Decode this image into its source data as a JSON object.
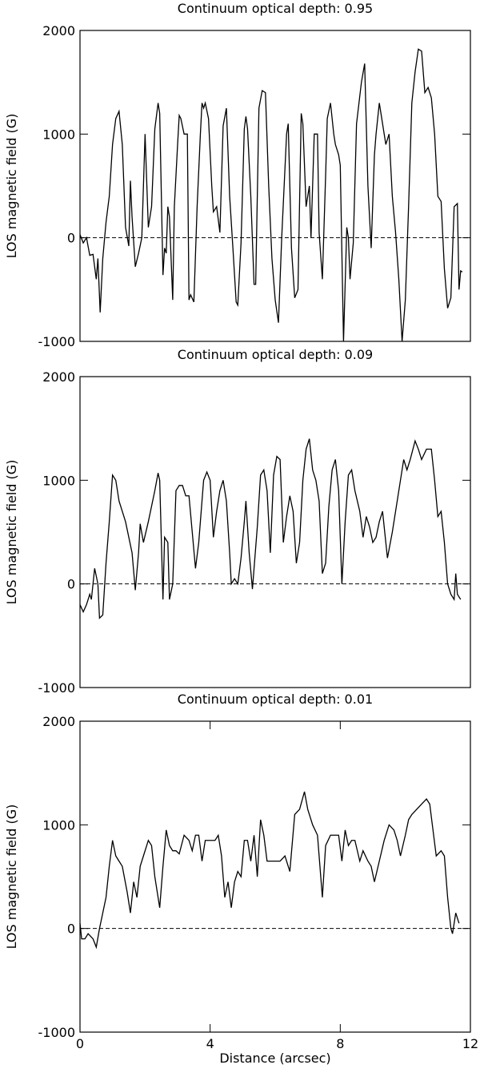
{
  "chart_data": [
    {
      "type": "line",
      "title": "Continuum optical depth: 0.95",
      "y_label": "LOS magnetic field (G)",
      "xlim": [
        0,
        12
      ],
      "ylim": [
        -1000,
        2000
      ],
      "yticks": [
        -1000,
        0,
        1000,
        2000
      ],
      "hline": 0,
      "x": [
        0,
        0.1,
        0.2,
        0.3,
        0.4,
        0.5,
        0.55,
        0.62,
        0.7,
        0.8,
        0.9,
        1.0,
        1.1,
        1.2,
        1.3,
        1.4,
        1.5,
        1.55,
        1.6,
        1.7,
        1.8,
        1.9,
        2.0,
        2.1,
        2.2,
        2.3,
        2.4,
        2.45,
        2.55,
        2.6,
        2.65,
        2.7,
        2.75,
        2.85,
        2.9,
        3.0,
        3.05,
        3.1,
        3.2,
        3.3,
        3.35,
        3.4,
        3.5,
        3.6,
        3.7,
        3.75,
        3.8,
        3.85,
        3.95,
        4.05,
        4.1,
        4.2,
        4.3,
        4.4,
        4.5,
        4.6,
        4.7,
        4.8,
        4.85,
        4.95,
        5.05,
        5.1,
        5.15,
        5.25,
        5.35,
        5.4,
        5.5,
        5.6,
        5.7,
        5.8,
        5.9,
        6.0,
        6.1,
        6.2,
        6.35,
        6.4,
        6.5,
        6.6,
        6.7,
        6.8,
        6.85,
        6.95,
        7.05,
        7.1,
        7.2,
        7.3,
        7.35,
        7.45,
        7.55,
        7.6,
        7.7,
        7.8,
        7.85,
        7.95,
        8.0,
        8.1,
        8.2,
        8.25,
        8.3,
        8.4,
        8.5,
        8.65,
        8.75,
        8.85,
        8.95,
        9.05,
        9.1,
        9.2,
        9.3,
        9.4,
        9.5,
        9.6,
        9.7,
        9.8,
        9.9,
        10.0,
        10.1,
        10.2,
        10.3,
        10.4,
        10.5,
        10.6,
        10.7,
        10.8,
        10.9,
        11.0,
        11.1,
        11.2,
        11.3,
        11.4,
        11.5,
        11.6,
        11.65,
        11.7,
        11.75
      ],
      "series": [
        {
          "color": "#000000",
          "values": [
            30,
            -50,
            0,
            -170,
            -160,
            -400,
            -200,
            -720,
            -200,
            150,
            400,
            900,
            1150,
            1220,
            900,
            100,
            -80,
            550,
            200,
            -280,
            -150,
            0,
            1000,
            100,
            300,
            1050,
            1300,
            1200,
            -360,
            -100,
            -150,
            300,
            200,
            -600,
            300,
            900,
            1180,
            1150,
            1000,
            1000,
            -600,
            -550,
            -620,
            300,
            1000,
            1300,
            1250,
            1300,
            1150,
            500,
            250,
            300,
            50,
            1080,
            1250,
            400,
            -100,
            -620,
            -650,
            -50,
            1050,
            1170,
            1050,
            400,
            -450,
            -450,
            1250,
            1420,
            1400,
            500,
            -200,
            -600,
            -820,
            0,
            1000,
            1100,
            -100,
            -580,
            -500,
            1200,
            1100,
            300,
            500,
            0,
            1000,
            1000,
            50,
            -400,
            600,
            1150,
            1300,
            1000,
            900,
            800,
            700,
            -1000,
            100,
            0,
            -400,
            -50,
            1100,
            1500,
            1680,
            500,
            -100,
            800,
            1000,
            1300,
            1100,
            900,
            1000,
            400,
            50,
            -400,
            -1000,
            -600,
            300,
            1300,
            1600,
            1820,
            1800,
            1400,
            1450,
            1350,
            1000,
            400,
            350,
            -300,
            -680,
            -580,
            300,
            330,
            -500,
            -320,
            -330
          ]
        }
      ]
    },
    {
      "type": "line",
      "title": "Continuum optical depth: 0.09",
      "y_label": "LOS magnetic field (G)",
      "xlim": [
        0,
        12
      ],
      "ylim": [
        -1000,
        2000
      ],
      "yticks": [
        -1000,
        0,
        1000,
        2000
      ],
      "hline": 0,
      "x": [
        0,
        0.1,
        0.2,
        0.3,
        0.35,
        0.45,
        0.55,
        0.6,
        0.7,
        0.8,
        0.9,
        1.0,
        1.1,
        1.2,
        1.4,
        1.6,
        1.7,
        1.8,
        1.85,
        1.95,
        2.1,
        2.3,
        2.4,
        2.45,
        2.55,
        2.6,
        2.7,
        2.75,
        2.85,
        2.95,
        3.05,
        3.15,
        3.25,
        3.35,
        3.45,
        3.55,
        3.65,
        3.8,
        3.9,
        4.0,
        4.1,
        4.2,
        4.3,
        4.4,
        4.5,
        4.6,
        4.65,
        4.75,
        4.85,
        4.95,
        5.05,
        5.1,
        5.2,
        5.3,
        5.45,
        5.55,
        5.65,
        5.75,
        5.85,
        5.95,
        6.05,
        6.15,
        6.25,
        6.35,
        6.45,
        6.55,
        6.65,
        6.75,
        6.85,
        6.95,
        7.05,
        7.15,
        7.25,
        7.35,
        7.45,
        7.55,
        7.65,
        7.75,
        7.85,
        7.95,
        8.05,
        8.15,
        8.25,
        8.35,
        8.45,
        8.6,
        8.7,
        8.8,
        8.9,
        9.0,
        9.1,
        9.2,
        9.3,
        9.45,
        9.6,
        9.7,
        9.85,
        9.95,
        10.05,
        10.15,
        10.3,
        10.4,
        10.5,
        10.65,
        10.8,
        10.9,
        11.0,
        11.1,
        11.2,
        11.3,
        11.4,
        11.5,
        11.55,
        11.6,
        11.7
      ],
      "series": [
        {
          "color": "#000000",
          "values": [
            -200,
            -270,
            -200,
            -100,
            -150,
            150,
            0,
            -330,
            -300,
            200,
            600,
            1050,
            1000,
            800,
            600,
            300,
            -60,
            300,
            580,
            400,
            600,
            900,
            1070,
            1000,
            -150,
            450,
            400,
            -150,
            0,
            900,
            950,
            950,
            850,
            850,
            500,
            150,
            400,
            1000,
            1080,
            1000,
            450,
            700,
            900,
            1000,
            800,
            300,
            0,
            50,
            0,
            250,
            600,
            800,
            300,
            -50,
            550,
            1050,
            1100,
            900,
            300,
            1050,
            1230,
            1200,
            400,
            650,
            850,
            700,
            200,
            400,
            1000,
            1300,
            1400,
            1100,
            1000,
            800,
            100,
            200,
            750,
            1100,
            1200,
            900,
            0,
            600,
            1050,
            1100,
            900,
            700,
            450,
            650,
            550,
            400,
            450,
            600,
            700,
            250,
            500,
            700,
            1000,
            1200,
            1100,
            1200,
            1380,
            1300,
            1200,
            1300,
            1300,
            1000,
            650,
            700,
            400,
            0,
            -100,
            -150,
            100,
            -100,
            -150
          ]
        }
      ]
    },
    {
      "type": "line",
      "title": "Continuum optical depth: 0.01",
      "y_label": "LOS magnetic field (G)",
      "x_label": "Distance (arcsec)",
      "xlim": [
        0,
        12
      ],
      "xticks": [
        0,
        4,
        8,
        12
      ],
      "ylim": [
        -1000,
        2000
      ],
      "yticks": [
        -1000,
        0,
        1000,
        2000
      ],
      "hline": 0,
      "x": [
        0,
        0.05,
        0.15,
        0.25,
        0.4,
        0.5,
        0.6,
        0.7,
        0.8,
        0.9,
        1.0,
        1.1,
        1.2,
        1.3,
        1.45,
        1.55,
        1.65,
        1.75,
        1.85,
        1.95,
        2.1,
        2.2,
        2.3,
        2.45,
        2.55,
        2.65,
        2.75,
        2.85,
        2.95,
        3.05,
        3.2,
        3.35,
        3.45,
        3.55,
        3.65,
        3.75,
        3.85,
        4.0,
        4.15,
        4.25,
        4.35,
        4.45,
        4.55,
        4.65,
        4.75,
        4.85,
        4.95,
        5.05,
        5.15,
        5.25,
        5.35,
        5.45,
        5.55,
        5.65,
        5.75,
        5.85,
        6.0,
        6.15,
        6.3,
        6.45,
        6.6,
        6.75,
        6.9,
        7.0,
        7.15,
        7.3,
        7.45,
        7.55,
        7.7,
        7.85,
        7.95,
        8.05,
        8.15,
        8.25,
        8.35,
        8.45,
        8.6,
        8.7,
        8.85,
        8.95,
        9.05,
        9.2,
        9.35,
        9.5,
        9.65,
        9.75,
        9.85,
        10.0,
        10.1,
        10.2,
        10.35,
        10.5,
        10.65,
        10.75,
        10.85,
        10.95,
        11.1,
        11.2,
        11.3,
        11.4,
        11.45,
        11.55,
        11.65
      ],
      "series": [
        {
          "color": "#000000",
          "values": [
            50,
            -100,
            -100,
            -50,
            -100,
            -180,
            0,
            150,
            300,
            600,
            850,
            700,
            650,
            600,
            350,
            150,
            450,
            300,
            600,
            700,
            850,
            800,
            500,
            200,
            600,
            950,
            800,
            750,
            750,
            720,
            900,
            850,
            750,
            900,
            900,
            650,
            850,
            850,
            850,
            900,
            700,
            300,
            450,
            200,
            450,
            550,
            500,
            850,
            850,
            650,
            900,
            500,
            1050,
            900,
            650,
            650,
            650,
            650,
            700,
            550,
            1100,
            1150,
            1320,
            1150,
            1000,
            900,
            300,
            800,
            900,
            900,
            900,
            650,
            950,
            800,
            850,
            850,
            650,
            750,
            650,
            600,
            450,
            650,
            850,
            1000,
            950,
            850,
            700,
            900,
            1050,
            1100,
            1150,
            1200,
            1250,
            1200,
            950,
            700,
            750,
            700,
            300,
            0,
            -50,
            150,
            50
          ]
        }
      ]
    }
  ]
}
